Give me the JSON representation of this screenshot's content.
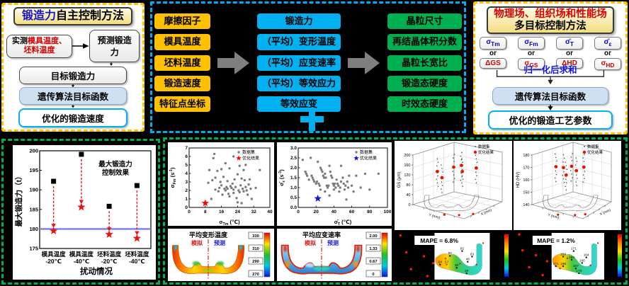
{
  "force_panel": {
    "title_hl": "锻造力",
    "title_rest": "自主控制方法",
    "measured_black": "实测",
    "measured_red1": "模具温度、",
    "measured_red2": "坯料温度",
    "predicted": "预测锻造力",
    "target": "目标锻造力",
    "ga": "遗传算法目标函数",
    "output": "优化的锻造速度"
  },
  "mapping_panel": {
    "inputs": [
      "摩擦因子",
      "模具温度",
      "坯料温度",
      "锻造速度",
      "特征点坐标"
    ],
    "middles": [
      "锻造力",
      "（平均）变形温度",
      "（平均）应变速率",
      "（平均）等效应力",
      "等效应变"
    ],
    "outputs": [
      "晶粒尺寸",
      "再结晶体积分数",
      "晶粒长宽比",
      "锻造态硬度",
      "时效态硬度"
    ]
  },
  "objective_panel": {
    "title1": "物理场、组织场和性能场",
    "title2": "多目标控制方法",
    "or": "or",
    "top_syms": [
      "σ_{Tm}",
      "σ_{Fm}",
      "σ̄_{T}",
      "σ̄_{ε}"
    ],
    "bottom_syms": [
      "ΔGS",
      "σ_{GS}",
      "ΔHD",
      "σ_{HD}"
    ],
    "normalize": "归一化后求和",
    "ga": "遗传算法目标函数",
    "output": "优化的锻造工艺参数"
  },
  "chart_data": [
    {
      "id": "max_force_control",
      "type": "scatter",
      "title_lines": [
        "最大锻造力",
        "控制效果"
      ],
      "xlabel": "扰动情况",
      "ylabel": "最大锻造力（t）",
      "ylim": [
        175,
        200
      ],
      "yticks": [
        175,
        180,
        185,
        190,
        195,
        200
      ],
      "categories": [
        [
          "模具温度",
          "-20℃"
        ],
        [
          "模具温度",
          "-40℃"
        ],
        [
          "坯料温度",
          "-20℃"
        ],
        [
          "坯料温度",
          "-40℃"
        ]
      ],
      "series": [
        {
          "marker": "square",
          "color": "#000000",
          "values": [
            192.2,
            199.1,
            185.8,
            191.1
          ]
        },
        {
          "marker": "star",
          "color": "#ff0000",
          "values": [
            179.5,
            185.6,
            178.6,
            177.6
          ]
        }
      ],
      "reference_line": {
        "y": 180,
        "color": "#7b7bf0"
      }
    },
    {
      "id": "scatter_sigma_tm",
      "type": "scatter",
      "xlabel": "σ_{Tm} (℃)",
      "ylabel": "σ_{Fm} (s^{-1})",
      "xlim": [
        0,
        40
      ],
      "xticks": [
        0,
        8,
        16,
        24,
        32,
        40
      ],
      "ylim": [
        0,
        7
      ],
      "yticks": [
        0,
        1,
        2,
        3,
        4,
        5,
        6,
        7
      ],
      "legend": [
        "数据集",
        "优化结果"
      ],
      "optimal": {
        "x": 8,
        "y": 0.5,
        "color": "#ff0000"
      },
      "points": [
        [
          9.5,
          2.9
        ],
        [
          10,
          4.4
        ],
        [
          11,
          1.0
        ],
        [
          11.5,
          3.2
        ],
        [
          12,
          5.8
        ],
        [
          12.5,
          6.3
        ],
        [
          13,
          3.5
        ],
        [
          13,
          2.1
        ],
        [
          14,
          4.3
        ],
        [
          14.5,
          1.9
        ],
        [
          15,
          2.3
        ],
        [
          15.5,
          3.0
        ],
        [
          16,
          4.5
        ],
        [
          16,
          2.6
        ],
        [
          16.5,
          1.5
        ],
        [
          17,
          3.6
        ],
        [
          17.5,
          2.2
        ],
        [
          18,
          5.2
        ],
        [
          18,
          2.0
        ],
        [
          18.5,
          2.4
        ],
        [
          19,
          2.2
        ],
        [
          19.5,
          1.6
        ],
        [
          20,
          4.6
        ],
        [
          20,
          1.3
        ],
        [
          20.5,
          2.5
        ],
        [
          21,
          2.3
        ],
        [
          21.5,
          2.8
        ],
        [
          22,
          6.0
        ],
        [
          22,
          2.1
        ],
        [
          22.5,
          3.3
        ],
        [
          23,
          2.4
        ],
        [
          23.5,
          1.1
        ],
        [
          24,
          0.6
        ],
        [
          24,
          3.9
        ],
        [
          24.5,
          2.0
        ],
        [
          25,
          1.8
        ],
        [
          25,
          4.9
        ],
        [
          25.5,
          2.6
        ],
        [
          26,
          3.4
        ],
        [
          26.5,
          2.2
        ],
        [
          27,
          1.9
        ],
        [
          27,
          4.4
        ],
        [
          27.5,
          3.2
        ],
        [
          28,
          2.4
        ],
        [
          28,
          5.0
        ],
        [
          28.5,
          2.0
        ],
        [
          29,
          1.5
        ],
        [
          29.5,
          2.7
        ],
        [
          30,
          3.3
        ],
        [
          30.5,
          2.2
        ],
        [
          31,
          1.0
        ],
        [
          33,
          2.3
        ],
        [
          35,
          4.4
        ],
        [
          26,
          0.5
        ],
        [
          22,
          1.7
        ],
        [
          19,
          3.1
        ]
      ]
    },
    {
      "id": "scatter_sigma_t",
      "type": "scatter",
      "xlabel": "σ̄_{T} (℃)",
      "ylabel": "σ̄_{ε} (s^{-1})",
      "xlim": [
        0,
        100
      ],
      "xticks": [
        0,
        20,
        40,
        60,
        80,
        100
      ],
      "ylim": [
        0,
        3
      ],
      "yticks": [
        "0.0",
        "0.5",
        "1.0",
        "1.5",
        "2.0",
        "2.5",
        "3.0"
      ],
      "legend": [
        "数据集",
        "优化结果"
      ],
      "optimal": {
        "x": 22,
        "y": 0.45,
        "color": "#1414e0"
      },
      "points": [
        [
          5,
          2.4
        ],
        [
          8,
          1.8
        ],
        [
          9,
          1.7
        ],
        [
          10,
          1.6
        ],
        [
          12,
          1.4
        ],
        [
          14,
          2.5
        ],
        [
          15,
          1.6
        ],
        [
          16,
          1.5
        ],
        [
          17,
          1.4
        ],
        [
          18,
          1.3
        ],
        [
          20,
          1.2
        ],
        [
          21,
          1.3
        ],
        [
          22,
          2.3
        ],
        [
          23,
          1.2
        ],
        [
          24,
          1.1
        ],
        [
          25,
          2.0
        ],
        [
          26,
          1.9
        ],
        [
          27,
          1.8
        ],
        [
          28,
          1.6
        ],
        [
          29,
          1.5
        ],
        [
          30,
          1.7
        ],
        [
          30,
          0.8
        ],
        [
          31,
          1.5
        ],
        [
          32,
          1.1
        ],
        [
          33,
          1.0
        ],
        [
          34,
          1.1
        ],
        [
          35,
          2.1
        ],
        [
          35,
          0.6
        ],
        [
          36,
          1.8
        ],
        [
          37,
          1.6
        ],
        [
          38,
          1.5
        ],
        [
          39,
          1.2
        ],
        [
          40,
          1.1
        ],
        [
          40,
          0.9
        ],
        [
          41,
          1.2
        ],
        [
          42,
          1.0
        ],
        [
          43,
          1.4
        ],
        [
          44,
          1.2
        ],
        [
          45,
          1.1
        ],
        [
          46,
          0.8
        ],
        [
          47,
          1.0
        ],
        [
          48,
          2.1
        ],
        [
          48,
          1.3
        ],
        [
          50,
          1.5
        ],
        [
          51,
          1.2
        ],
        [
          52,
          0.9
        ],
        [
          53,
          1.1
        ],
        [
          54,
          0.4
        ],
        [
          55,
          1.3
        ],
        [
          56,
          1.0
        ],
        [
          57,
          1.6
        ],
        [
          60,
          1.1
        ],
        [
          62,
          0.8
        ],
        [
          65,
          1.6
        ],
        [
          70,
          1.0
        ],
        [
          75,
          1.7
        ],
        [
          80,
          0.9
        ],
        [
          90,
          1.7
        ],
        [
          25,
          0.9
        ]
      ]
    },
    {
      "id": "gs_3d",
      "type": "scatter",
      "zlabel": "GS (μm)",
      "zticks": [
        0,
        40,
        80,
        120,
        160,
        200
      ],
      "xlabel": "X (mm)",
      "ylabel": "Y (mm)",
      "legend": [
        "数据集",
        "优化结果"
      ],
      "optimal_points": [
        [
          0.3,
          0.58
        ],
        [
          0.24,
          0.44
        ],
        [
          0.45,
          0.34
        ],
        [
          0.56,
          0.44
        ],
        [
          0.55,
          0.3
        ],
        [
          0.74,
          0.36
        ]
      ],
      "floor_points": [
        [
          0.33,
          0.78
        ],
        [
          0.52,
          0.8
        ],
        [
          0.7,
          0.74
        ]
      ]
    },
    {
      "id": "hd_3d",
      "type": "scatter",
      "zlabel": "HD (HV)",
      "zticks": [
        140,
        150,
        160,
        170,
        180
      ],
      "xlabel": "X (mm)",
      "ylabel": "Y (mm)",
      "legend": [
        "数据集",
        "优化结果"
      ],
      "optimal_points": [
        [
          0.27,
          0.33
        ],
        [
          0.38,
          0.35
        ],
        [
          0.5,
          0.32
        ],
        [
          0.57,
          0.42
        ],
        [
          0.68,
          0.34
        ],
        [
          0.42,
          0.52
        ]
      ],
      "floor_points": [
        [
          0.3,
          0.78
        ],
        [
          0.55,
          0.8
        ],
        [
          0.7,
          0.76
        ]
      ]
    },
    {
      "id": "contour_temp",
      "type": "heatmap",
      "title": "平均变形温度",
      "label_left": "模拟",
      "label_right": "预测",
      "colorbar_labels": [
        "330",
        "310",
        "290",
        "270"
      ]
    },
    {
      "id": "contour_strain",
      "type": "heatmap",
      "title": "平均应变速率",
      "label_left": "模拟",
      "label_right": "预测",
      "colorbar_labels": [
        "2.00",
        "1.33",
        "0.67",
        "0"
      ]
    },
    {
      "id": "mape_gs",
      "type": "heatmap",
      "label": "MAPE = 6.8%",
      "point_labels": [
        [
          "82",
          0.5,
          0.28,
          "k"
        ],
        [
          "80",
          0.28,
          0.4,
          "k"
        ],
        [
          "63",
          0.68,
          0.42,
          "k"
        ],
        [
          "48",
          0.6,
          0.55,
          "k"
        ],
        [
          "64",
          0.1,
          0.62,
          "k"
        ],
        [
          "57",
          0.22,
          0.62,
          "r"
        ],
        [
          "50",
          0.4,
          0.7,
          "k"
        ],
        [
          "20",
          0.58,
          0.84,
          "k"
        ],
        [
          "",
          0.88,
          0.08,
          "r"
        ],
        [
          "",
          0.2,
          0.47,
          "r"
        ],
        [
          "",
          0.76,
          0.62,
          "r"
        ],
        [
          "",
          0.46,
          0.6,
          "r"
        ]
      ],
      "red_dots": [
        [
          0.05,
          0.08
        ],
        [
          0.1,
          0.42
        ],
        [
          0.25,
          0.5
        ],
        [
          0.14,
          0.76
        ],
        [
          0.33,
          0.64
        ],
        [
          0.28,
          0.9
        ]
      ]
    },
    {
      "id": "mape_hd",
      "type": "heatmap",
      "label": "MAPE = 1.2%",
      "point_labels": [
        [
          "171",
          0.42,
          0.28,
          "k"
        ],
        [
          "169",
          0.22,
          0.42,
          "k"
        ],
        [
          "164",
          0.66,
          0.44,
          "k"
        ],
        [
          "163",
          0.38,
          0.5,
          "k"
        ],
        [
          "166",
          0.58,
          0.58,
          "k"
        ],
        [
          "171",
          0.08,
          0.66,
          "k"
        ],
        [
          "166",
          0.22,
          0.66,
          "k"
        ],
        [
          "167",
          0.46,
          0.72,
          "k"
        ],
        [
          "170",
          0.52,
          0.84,
          "k"
        ],
        [
          "",
          0.88,
          0.08,
          "r"
        ],
        [
          "",
          0.3,
          0.46,
          "r"
        ],
        [
          "",
          0.74,
          0.64,
          "r"
        ],
        [
          "",
          0.16,
          0.72,
          "r"
        ]
      ],
      "red_dots": [
        [
          0.05,
          0.06
        ],
        [
          0.08,
          0.38
        ],
        [
          0.2,
          0.48
        ],
        [
          0.14,
          0.72
        ],
        [
          0.3,
          0.6
        ],
        [
          0.26,
          0.88
        ]
      ]
    }
  ]
}
